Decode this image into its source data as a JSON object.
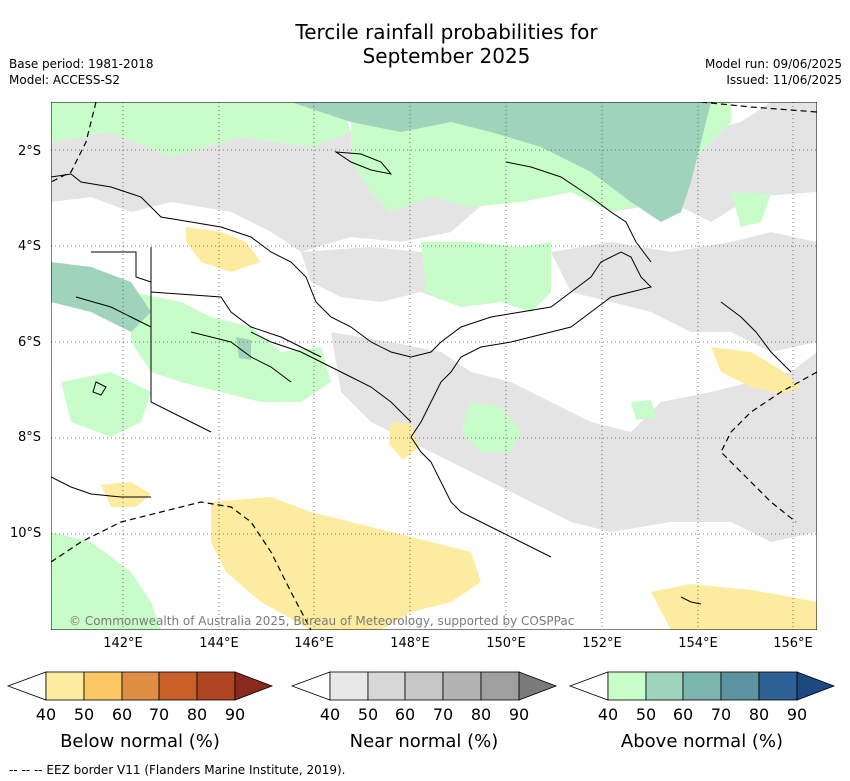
{
  "title_line1": "Tercile rainfall probabilities for",
  "title_line2": "September 2025",
  "base_period": "Base period: 1981-2018",
  "model": "Model: ACCESS-S2",
  "model_run": "Model run: 09/06/2025",
  "issued": "Issued: 11/06/2025",
  "copyright": "© Commonwealth of Australia 2025, Bureau of Meteorology, supported by COSPPac",
  "lat_ticks": [
    "2°S",
    "4°S",
    "6°S",
    "8°S",
    "10°S"
  ],
  "lon_ticks": [
    "142°E",
    "144°E",
    "146°E",
    "148°E",
    "150°E",
    "152°E",
    "154°E",
    "156°E"
  ],
  "colorbars": [
    {
      "label": "Below normal (%)",
      "ticks": [
        "40",
        "50",
        "60",
        "70",
        "80",
        "90"
      ],
      "colors": [
        "#ffffff",
        "#fdeca0",
        "#fcc865",
        "#e08e44",
        "#c96029",
        "#ad4522",
        "#8b2a1c"
      ]
    },
    {
      "label": "Near normal (%)",
      "ticks": [
        "40",
        "50",
        "60",
        "70",
        "80",
        "90"
      ],
      "colors": [
        "#ffffff",
        "#e8e8e8",
        "#d7d7d7",
        "#c6c6c6",
        "#b3b3b3",
        "#9f9f9f",
        "#7a7a7a"
      ]
    },
    {
      "label": "Above normal (%)",
      "ticks": [
        "40",
        "50",
        "60",
        "70",
        "80",
        "90"
      ],
      "colors": [
        "#ffffff",
        "#c8fcc8",
        "#9fd3bb",
        "#7bb5ad",
        "#5d93a0",
        "#2e6296",
        "#1a4a80"
      ]
    }
  ],
  "footnote": "--  --  -- EEZ border V11 (Flanders Marine Institute, 2019)."
}
